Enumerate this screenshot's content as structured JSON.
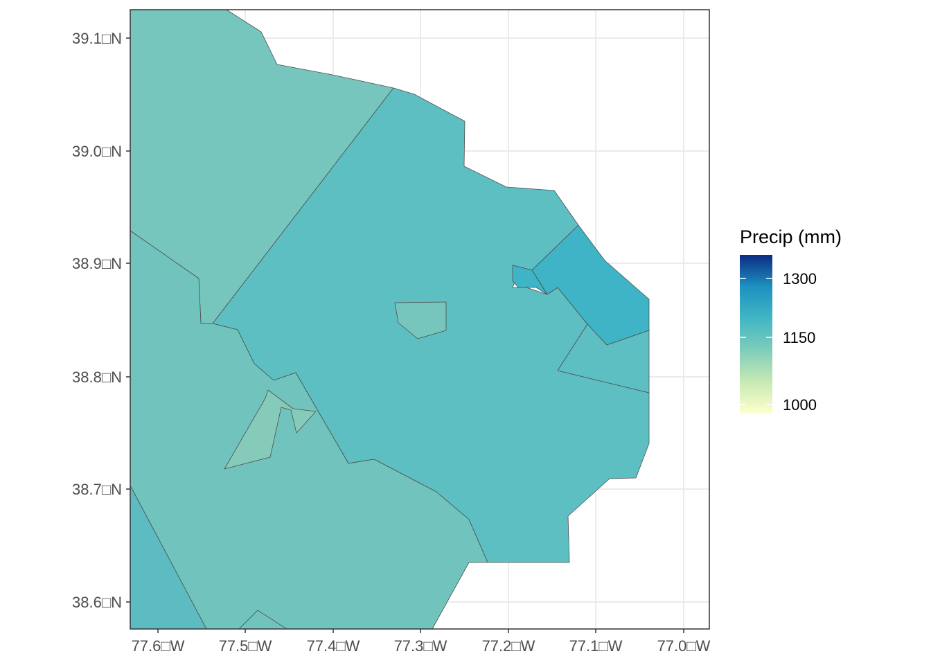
{
  "map": {
    "x_ticks": [
      {
        "lon": -77.6,
        "label": "77.6□W"
      },
      {
        "lon": -77.5,
        "label": "77.5□W"
      },
      {
        "lon": -77.4,
        "label": "77.4□W"
      },
      {
        "lon": -77.3,
        "label": "77.3□W"
      },
      {
        "lon": -77.2,
        "label": "77.2□W"
      },
      {
        "lon": -77.1,
        "label": "77.1□W"
      },
      {
        "lon": -77.0,
        "label": "77.0□W"
      }
    ],
    "y_ticks": [
      {
        "lat": 39.1,
        "label": "39.1□N"
      },
      {
        "lat": 39.0,
        "label": "39.0□N"
      },
      {
        "lat": 38.9,
        "label": "38.9□N"
      },
      {
        "lat": 38.8,
        "label": "38.8□N"
      },
      {
        "lat": 38.7,
        "label": "38.7□N"
      },
      {
        "lat": 38.6,
        "label": "38.6□N"
      }
    ],
    "colors": {
      "region_northwest": "#77c6bd",
      "region_central": "#5dbfc1",
      "region_southwest": "#70c4bd",
      "region_south_west_edge": "#5dbcc2",
      "region_east": "#3eb4c6",
      "region_small_island": "#76c6bd",
      "region_small_green": "#86cbb9"
    }
  },
  "legend": {
    "title": "Precip (mm)",
    "labels": [
      {
        "value": 1300,
        "label": "1300"
      },
      {
        "value": 1150,
        "label": "1150"
      },
      {
        "value": 1000,
        "label": "1000"
      }
    ],
    "color_low": "#ffffcc",
    "color_mid": "#7fcdbb",
    "color_high": "#0c2c84"
  }
}
